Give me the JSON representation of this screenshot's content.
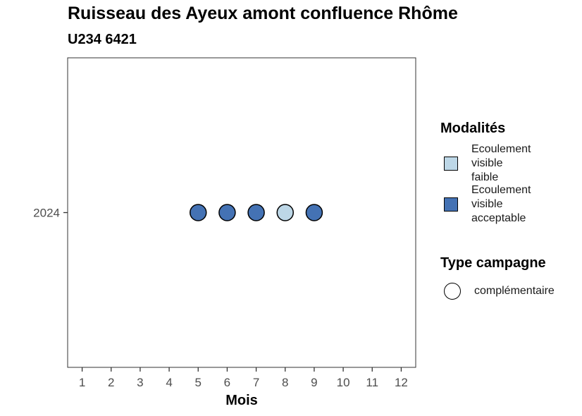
{
  "chart_data": {
    "type": "scatter",
    "title": "Ruisseau des Ayeux amont confluence Rhôme",
    "subtitle": "U234 6421",
    "xlabel": "Mois",
    "ylabel": "",
    "x_ticks": [
      1,
      2,
      3,
      4,
      5,
      6,
      7,
      8,
      9,
      10,
      11,
      12
    ],
    "y_ticks": [
      "2024"
    ],
    "xlim": [
      0.5,
      12.5
    ],
    "grid": false,
    "legend_position": "right",
    "points": [
      {
        "x": 5,
        "y": "2024",
        "modalite": "Ecoulement visible acceptable",
        "type_campagne": "complémentaire"
      },
      {
        "x": 6,
        "y": "2024",
        "modalite": "Ecoulement visible acceptable",
        "type_campagne": "complémentaire"
      },
      {
        "x": 7,
        "y": "2024",
        "modalite": "Ecoulement visible acceptable",
        "type_campagne": "complémentaire"
      },
      {
        "x": 8,
        "y": "2024",
        "modalite": "Ecoulement visible faible",
        "type_campagne": "complémentaire"
      },
      {
        "x": 9,
        "y": "2024",
        "modalite": "Ecoulement visible acceptable",
        "type_campagne": "complémentaire"
      }
    ],
    "legend_fill": {
      "title": "Modalités",
      "entries": [
        {
          "label_lines": [
            "Ecoulement",
            "visible",
            "faible"
          ],
          "value": "Ecoulement visible faible",
          "color": "#bdd7e7"
        },
        {
          "label_lines": [
            "Ecoulement",
            "visible",
            "acceptable"
          ],
          "value": "Ecoulement visible acceptable",
          "color": "#4472b4"
        }
      ]
    },
    "legend_shape": {
      "title": "Type campagne",
      "entries": [
        {
          "label": "complémentaire",
          "shape": "circle"
        }
      ]
    }
  }
}
